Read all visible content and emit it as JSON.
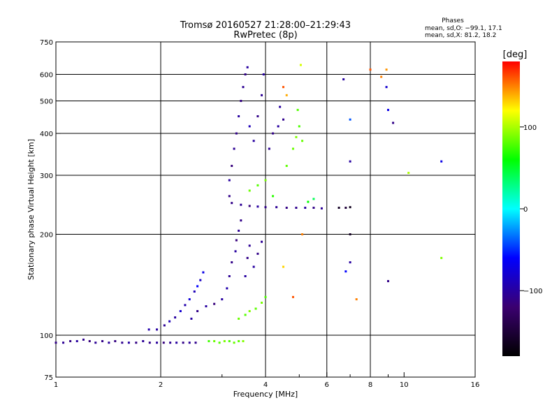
{
  "header": {
    "title": "Tromsø 20160527 21:28:00–21:29:43",
    "subtitle": "RwPretec (8p)"
  },
  "stats": {
    "heading": "Phases",
    "line_o": "mean, sd,O: −99.1, 17.1",
    "line_x": "mean, sd,X:  81.2, 18.2"
  },
  "colorbar": {
    "unit": "[deg]",
    "ticks": [
      {
        "value": 100,
        "label": "100"
      },
      {
        "value": 0,
        "label": "0"
      },
      {
        "value": -100,
        "label": "−100"
      }
    ],
    "range": [
      -180,
      180
    ],
    "colors": [
      "#000000",
      "#3b0070",
      "#0000ff",
      "#00ffff",
      "#00ff00",
      "#ffff00",
      "#ff0000"
    ]
  },
  "chart_data": {
    "type": "scatter",
    "xlabel": "Frequency [MHz]",
    "ylabel": "Stationary phase Virtual Height [km]",
    "xscale": "log",
    "yscale": "log",
    "xlim": [
      1,
      16
    ],
    "ylim": [
      75,
      750
    ],
    "xticks": [
      {
        "value": 1,
        "label": "1"
      },
      {
        "value": 2,
        "label": "2"
      },
      {
        "value": 4,
        "label": "4"
      },
      {
        "value": 6,
        "label": "6"
      },
      {
        "value": 8,
        "label": "8"
      },
      {
        "value": 10,
        "label": "10"
      },
      {
        "value": 16,
        "label": "16"
      }
    ],
    "yticks": [
      {
        "value": 75,
        "label": "75"
      },
      {
        "value": 100,
        "label": "100"
      },
      {
        "value": 200,
        "label": "200"
      },
      {
        "value": 300,
        "label": "300"
      },
      {
        "value": 400,
        "label": "400"
      },
      {
        "value": 500,
        "label": "500"
      },
      {
        "value": 600,
        "label": "600"
      },
      {
        "value": 750,
        "label": "750"
      }
    ],
    "vgrid": [
      2,
      4,
      6,
      8
    ],
    "hgrid": [
      100,
      200,
      300,
      400,
      500,
      600
    ],
    "minor_x": [
      3,
      5,
      7,
      9
    ],
    "grid": true,
    "marker_color_by": "phase [deg]",
    "points": [
      {
        "x": 1.0,
        "y": 95,
        "phase": -110
      },
      {
        "x": 1.05,
        "y": 95,
        "phase": -105
      },
      {
        "x": 1.1,
        "y": 96,
        "phase": -112
      },
      {
        "x": 1.15,
        "y": 96,
        "phase": -100
      },
      {
        "x": 1.2,
        "y": 97,
        "phase": -108
      },
      {
        "x": 1.25,
        "y": 96,
        "phase": -115
      },
      {
        "x": 1.3,
        "y": 95,
        "phase": -104
      },
      {
        "x": 1.36,
        "y": 96,
        "phase": -110
      },
      {
        "x": 1.42,
        "y": 95,
        "phase": -101
      },
      {
        "x": 1.48,
        "y": 96,
        "phase": -113
      },
      {
        "x": 1.55,
        "y": 95,
        "phase": -107
      },
      {
        "x": 1.62,
        "y": 95,
        "phase": -99
      },
      {
        "x": 1.7,
        "y": 95,
        "phase": -111
      },
      {
        "x": 1.78,
        "y": 96,
        "phase": -104
      },
      {
        "x": 1.86,
        "y": 95,
        "phase": -109
      },
      {
        "x": 1.95,
        "y": 95,
        "phase": -102
      },
      {
        "x": 2.04,
        "y": 95,
        "phase": -114
      },
      {
        "x": 2.13,
        "y": 95,
        "phase": -106
      },
      {
        "x": 2.22,
        "y": 95,
        "phase": -100
      },
      {
        "x": 2.32,
        "y": 95,
        "phase": -110
      },
      {
        "x": 2.42,
        "y": 95,
        "phase": -103
      },
      {
        "x": 2.52,
        "y": 95,
        "phase": -108
      },
      {
        "x": 2.75,
        "y": 96,
        "phase": 75
      },
      {
        "x": 2.85,
        "y": 96,
        "phase": 85
      },
      {
        "x": 2.95,
        "y": 95,
        "phase": 80
      },
      {
        "x": 3.05,
        "y": 96,
        "phase": 88
      },
      {
        "x": 3.15,
        "y": 96,
        "phase": 78
      },
      {
        "x": 3.25,
        "y": 95,
        "phase": 84
      },
      {
        "x": 3.35,
        "y": 96,
        "phase": 82
      },
      {
        "x": 3.45,
        "y": 96,
        "phase": 90
      },
      {
        "x": 1.85,
        "y": 104,
        "phase": -95
      },
      {
        "x": 1.95,
        "y": 104,
        "phase": -100
      },
      {
        "x": 2.05,
        "y": 107,
        "phase": -105
      },
      {
        "x": 2.12,
        "y": 110,
        "phase": -90
      },
      {
        "x": 2.2,
        "y": 113,
        "phase": -100
      },
      {
        "x": 2.28,
        "y": 118,
        "phase": -80
      },
      {
        "x": 2.35,
        "y": 123,
        "phase": -95
      },
      {
        "x": 2.42,
        "y": 128,
        "phase": -75
      },
      {
        "x": 2.5,
        "y": 135,
        "phase": -90
      },
      {
        "x": 2.55,
        "y": 140,
        "phase": -60
      },
      {
        "x": 2.6,
        "y": 146,
        "phase": -85
      },
      {
        "x": 2.65,
        "y": 154,
        "phase": -70
      },
      {
        "x": 2.45,
        "y": 112,
        "phase": -100
      },
      {
        "x": 2.55,
        "y": 118,
        "phase": -110
      },
      {
        "x": 2.7,
        "y": 122,
        "phase": -100
      },
      {
        "x": 2.85,
        "y": 124,
        "phase": -115
      },
      {
        "x": 3.0,
        "y": 128,
        "phase": -100
      },
      {
        "x": 3.1,
        "y": 138,
        "phase": -95
      },
      {
        "x": 3.15,
        "y": 150,
        "phase": -105
      },
      {
        "x": 3.2,
        "y": 165,
        "phase": -110
      },
      {
        "x": 3.28,
        "y": 178,
        "phase": -100
      },
      {
        "x": 3.3,
        "y": 192,
        "phase": -115
      },
      {
        "x": 3.35,
        "y": 205,
        "phase": -105
      },
      {
        "x": 3.4,
        "y": 220,
        "phase": -110
      },
      {
        "x": 3.5,
        "y": 150,
        "phase": -100
      },
      {
        "x": 3.55,
        "y": 170,
        "phase": -110
      },
      {
        "x": 3.6,
        "y": 185,
        "phase": -105
      },
      {
        "x": 3.7,
        "y": 160,
        "phase": -100
      },
      {
        "x": 3.8,
        "y": 175,
        "phase": -110
      },
      {
        "x": 3.9,
        "y": 190,
        "phase": -105
      },
      {
        "x": 3.35,
        "y": 112,
        "phase": 85
      },
      {
        "x": 3.5,
        "y": 115,
        "phase": 80
      },
      {
        "x": 3.6,
        "y": 118,
        "phase": 90
      },
      {
        "x": 3.75,
        "y": 120,
        "phase": 82
      },
      {
        "x": 3.9,
        "y": 125,
        "phase": 88
      },
      {
        "x": 4.0,
        "y": 130,
        "phase": 78
      },
      {
        "x": 3.2,
        "y": 248,
        "phase": -110
      },
      {
        "x": 3.4,
        "y": 245,
        "phase": -105
      },
      {
        "x": 3.6,
        "y": 243,
        "phase": -115
      },
      {
        "x": 3.8,
        "y": 242,
        "phase": -100
      },
      {
        "x": 4.0,
        "y": 241,
        "phase": -110
      },
      {
        "x": 4.3,
        "y": 241,
        "phase": -105
      },
      {
        "x": 4.6,
        "y": 240,
        "phase": -112
      },
      {
        "x": 4.9,
        "y": 240,
        "phase": -108
      },
      {
        "x": 5.2,
        "y": 240,
        "phase": -100
      },
      {
        "x": 5.5,
        "y": 240,
        "phase": -110
      },
      {
        "x": 5.8,
        "y": 239,
        "phase": -104
      },
      {
        "x": 3.15,
        "y": 260,
        "phase": -110
      },
      {
        "x": 3.15,
        "y": 290,
        "phase": -100
      },
      {
        "x": 3.2,
        "y": 320,
        "phase": -115
      },
      {
        "x": 3.25,
        "y": 360,
        "phase": -105
      },
      {
        "x": 3.3,
        "y": 400,
        "phase": -110
      },
      {
        "x": 3.35,
        "y": 450,
        "phase": -100
      },
      {
        "x": 3.4,
        "y": 500,
        "phase": -112
      },
      {
        "x": 3.45,
        "y": 550,
        "phase": -105
      },
      {
        "x": 3.5,
        "y": 600,
        "phase": -110
      },
      {
        "x": 3.55,
        "y": 630,
        "phase": -100
      },
      {
        "x": 3.6,
        "y": 420,
        "phase": -90
      },
      {
        "x": 3.7,
        "y": 380,
        "phase": -100
      },
      {
        "x": 3.8,
        "y": 450,
        "phase": -110
      },
      {
        "x": 3.9,
        "y": 520,
        "phase": -105
      },
      {
        "x": 3.95,
        "y": 600,
        "phase": -100
      },
      {
        "x": 4.1,
        "y": 360,
        "phase": -105
      },
      {
        "x": 4.2,
        "y": 400,
        "phase": -110
      },
      {
        "x": 4.35,
        "y": 420,
        "phase": -100
      },
      {
        "x": 4.5,
        "y": 440,
        "phase": -108
      },
      {
        "x": 4.4,
        "y": 480,
        "phase": -100
      },
      {
        "x": 3.6,
        "y": 270,
        "phase": 85
      },
      {
        "x": 3.8,
        "y": 280,
        "phase": 80
      },
      {
        "x": 4.0,
        "y": 290,
        "phase": 88
      },
      {
        "x": 4.6,
        "y": 320,
        "phase": 82
      },
      {
        "x": 4.8,
        "y": 360,
        "phase": 85
      },
      {
        "x": 4.9,
        "y": 390,
        "phase": 90
      },
      {
        "x": 5.0,
        "y": 420,
        "phase": 78
      },
      {
        "x": 5.1,
        "y": 380,
        "phase": 84
      },
      {
        "x": 4.95,
        "y": 470,
        "phase": 80
      },
      {
        "x": 5.3,
        "y": 250,
        "phase": 60
      },
      {
        "x": 5.5,
        "y": 255,
        "phase": 40
      },
      {
        "x": 4.2,
        "y": 260,
        "phase": 70
      },
      {
        "x": 5.05,
        "y": 640,
        "phase": 110
      },
      {
        "x": 4.6,
        "y": 520,
        "phase": 140
      },
      {
        "x": 4.5,
        "y": 550,
        "phase": 160
      },
      {
        "x": 5.1,
        "y": 200,
        "phase": 150
      },
      {
        "x": 4.5,
        "y": 160,
        "phase": 130
      },
      {
        "x": 4.8,
        "y": 130,
        "phase": 160
      },
      {
        "x": 6.5,
        "y": 240,
        "phase": -160
      },
      {
        "x": 6.8,
        "y": 240,
        "phase": -150
      },
      {
        "x": 7.0,
        "y": 241,
        "phase": -165
      },
      {
        "x": 6.7,
        "y": 580,
        "phase": -100
      },
      {
        "x": 7.0,
        "y": 330,
        "phase": -100
      },
      {
        "x": 7.0,
        "y": 440,
        "phase": -40
      },
      {
        "x": 7.0,
        "y": 165,
        "phase": -100
      },
      {
        "x": 7.0,
        "y": 200,
        "phase": -160
      },
      {
        "x": 6.8,
        "y": 155,
        "phase": -60
      },
      {
        "x": 7.3,
        "y": 128,
        "phase": 150
      },
      {
        "x": 8.0,
        "y": 620,
        "phase": 160
      },
      {
        "x": 8.6,
        "y": 590,
        "phase": 150
      },
      {
        "x": 8.9,
        "y": 620,
        "phase": 145
      },
      {
        "x": 8.9,
        "y": 550,
        "phase": -80
      },
      {
        "x": 9.0,
        "y": 470,
        "phase": -70
      },
      {
        "x": 9.0,
        "y": 145,
        "phase": -110
      },
      {
        "x": 9.3,
        "y": 430,
        "phase": -110
      },
      {
        "x": 10.3,
        "y": 305,
        "phase": 100
      },
      {
        "x": 12.8,
        "y": 330,
        "phase": -70
      },
      {
        "x": 12.8,
        "y": 170,
        "phase": 90
      }
    ]
  }
}
